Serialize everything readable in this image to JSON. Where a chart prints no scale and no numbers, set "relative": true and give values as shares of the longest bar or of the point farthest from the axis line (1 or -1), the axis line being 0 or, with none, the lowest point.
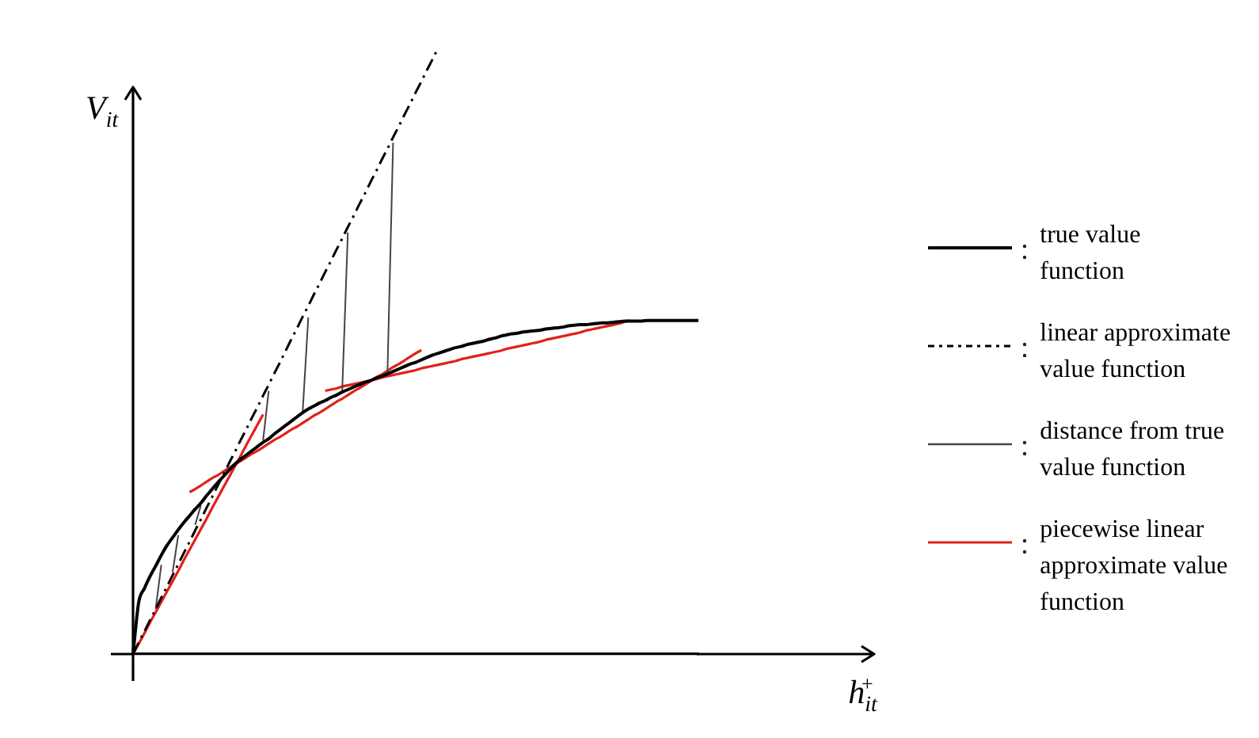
{
  "chart_data": {
    "type": "line",
    "xlabel": "h$_{it}$$^{+}$",
    "ylabel": "V$_{it}$",
    "relative": true,
    "legend": "right",
    "categories": [
      null,
      null,
      null,
      null,
      null,
      null,
      null,
      null,
      null,
      null,
      null,
      null,
      null,
      null,
      null,
      null,
      null,
      null,
      null,
      null,
      null,
      null,
      null,
      null,
      null,
      null,
      null,
      null,
      null,
      null,
      null,
      null,
      null,
      null,
      null,
      null,
      null,
      null,
      null,
      null,
      null,
      null,
      null,
      null,
      null,
      null,
      null,
      null,
      null,
      null,
      null,
      null,
      null,
      null,
      null,
      null,
      null,
      null,
      null,
      null,
      null,
      null,
      null,
      null,
      null,
      null,
      null,
      null,
      null,
      null,
      null,
      null,
      null,
      null,
      null,
      null,
      null,
      null,
      null,
      null,
      null,
      null,
      null,
      null,
      null,
      null,
      null,
      null,
      null,
      null,
      null,
      null,
      null,
      null,
      null,
      null,
      null,
      null,
      null,
      null,
      null
    ],
    "series": [
      {
        "name": "true value function",
        "color": "#000000",
        "values": [
          0,
          0.085,
          0.108,
          0.128,
          0.145,
          0.163,
          0.179,
          0.192,
          0.205,
          0.217,
          0.228,
          0.239,
          0.249,
          0.261,
          0.272,
          0.283,
          0.293,
          0.303,
          0.313,
          0.321,
          0.328,
          0.335,
          0.342,
          0.349,
          0.355,
          0.363,
          0.37,
          0.377,
          0.384,
          0.391,
          0.398,
          0.404,
          0.409,
          0.414,
          0.418,
          0.423,
          0.427,
          0.432,
          0.436,
          0.44,
          0.444,
          0.448,
          0.451,
          0.455,
          0.458,
          0.462,
          0.466,
          0.47,
          0.474,
          0.478,
          0.481,
          0.485,
          0.489,
          0.493,
          0.496,
          0.499,
          0.502,
          0.505,
          0.507,
          0.51,
          0.512,
          0.514,
          0.516,
          0.519,
          0.521,
          0.524,
          0.526,
          0.528,
          0.529,
          0.531,
          0.532,
          0.533,
          0.534,
          0.536,
          0.537,
          0.538,
          0.539,
          0.541,
          0.542,
          0.543,
          0.543,
          0.544,
          0.545,
          0.546,
          0.546,
          0.547,
          0.548,
          0.549,
          0.549,
          0.549,
          0.549,
          0.55,
          0.55,
          0.55,
          0.55,
          0.55,
          0.55,
          0.55,
          0.55,
          0.55,
          0.55
        ]
      },
      {
        "name": "linear approximate value function",
        "color": "#000000",
        "line_style": "dashdot",
        "values": [
          0,
          0.019,
          0.037,
          0.056,
          0.074,
          0.093,
          0.111,
          0.13,
          0.148,
          0.167,
          0.185,
          0.204,
          0.222,
          0.241,
          0.259,
          0.278,
          0.296,
          0.315,
          0.333,
          0.352,
          0.37,
          0.389,
          0.407,
          0.426,
          0.444,
          0.463,
          0.481,
          0.5,
          0.519,
          0.537,
          0.556,
          0.574,
          0.593,
          0.611,
          0.63,
          0.648,
          0.667,
          0.685,
          0.704,
          0.722,
          0.741,
          0.759,
          0.778,
          0.796,
          0.815,
          0.833,
          0.852,
          0.87,
          0.889,
          0.907,
          0.926,
          0.944,
          0.963,
          0.981,
          1,
          null,
          null,
          null,
          null,
          null,
          null,
          null,
          null,
          null,
          null,
          null,
          null,
          null,
          null,
          null,
          null,
          null,
          null,
          null,
          null,
          null,
          null,
          null,
          null,
          null,
          null,
          null,
          null,
          null,
          null,
          null,
          null,
          null,
          null,
          null,
          null,
          null,
          null,
          null,
          null,
          null,
          null,
          null,
          null,
          null,
          null
        ]
      },
      {
        "name": "distance from true value function",
        "color": "#444444",
        "values": [
          null,
          null,
          null,
          null,
          0.074,
          0.147,
          null,
          0.135,
          0.196,
          null,
          null,
          0.213,
          0.245,
          null,
          null,
          null,
          null,
          null,
          null,
          null,
          null,
          null,
          null,
          0.352,
          0.434,
          null,
          null,
          null,
          null,
          null,
          0.398,
          0.555,
          null,
          null,
          null,
          null,
          null,
          0.434,
          0.695,
          null,
          null,
          null,
          null,
          null,
          null,
          0.462,
          0.843,
          null,
          null,
          null,
          null,
          null,
          null,
          null,
          null,
          null,
          null,
          null,
          null,
          null,
          null,
          null,
          null,
          null,
          null,
          null,
          null,
          null,
          null,
          null,
          null,
          null,
          null,
          null,
          null,
          null,
          null,
          null,
          null,
          null,
          null,
          null,
          null,
          null,
          null,
          null,
          null,
          null,
          null,
          null,
          null,
          null,
          null,
          null,
          null,
          null,
          null,
          null,
          null,
          null,
          null
        ]
      },
      {
        "name": "piecewise linear approximate value function",
        "color": "#e3201b",
        "values": [
          0,
          0.017,
          0.034,
          0.052,
          0.069,
          0.086,
          0.103,
          0.12,
          0.137,
          0.155,
          0.172,
          0.189,
          0.206,
          0.223,
          0.241,
          0.258,
          0.275,
          0.292,
          0.309,
          0.326,
          0.344,
          0.361,
          0.378,
          0.395,
          null,
          null,
          null,
          null,
          null,
          null,
          null,
          null,
          null,
          null,
          null,
          null,
          null,
          null,
          null,
          null,
          null,
          null,
          null,
          null,
          null,
          null,
          null,
          null,
          null,
          null,
          null,
          null,
          null,
          null,
          null,
          null,
          null,
          null,
          null,
          null,
          null,
          null,
          null,
          null,
          null,
          null,
          null,
          null,
          null,
          null,
          null,
          null,
          null,
          null,
          null,
          null,
          null,
          null,
          null,
          null,
          null,
          null,
          null,
          null,
          null,
          null,
          null,
          null,
          null,
          null,
          null,
          null,
          null,
          null,
          null,
          null,
          null,
          null,
          null,
          null,
          null
        ]
      },
      {
        "color": "#e3201b",
        "values": [
          null,
          null,
          null,
          null,
          null,
          null,
          null,
          null,
          null,
          null,
          0.267,
          0.272,
          0.278,
          0.284,
          0.29,
          0.295,
          0.301,
          0.307,
          0.313,
          0.318,
          0.324,
          0.33,
          0.335,
          0.341,
          0.347,
          0.353,
          0.358,
          0.364,
          0.37,
          0.375,
          0.381,
          0.387,
          0.393,
          0.398,
          0.404,
          0.41,
          0.416,
          0.421,
          0.427,
          0.433,
          0.438,
          0.444,
          0.45,
          0.456,
          0.461,
          0.467,
          0.473,
          0.478,
          0.484,
          0.49,
          0.496,
          0.501,
          null,
          null,
          null,
          null,
          null,
          null,
          null,
          null,
          null,
          null,
          null,
          null,
          null,
          null,
          null,
          null,
          null,
          null,
          null,
          null,
          null,
          null,
          null,
          null,
          null,
          null,
          null,
          null,
          null,
          null,
          null,
          null,
          null,
          null,
          null,
          null,
          null,
          null,
          null,
          null,
          null,
          null,
          null,
          null,
          null,
          null,
          null,
          null,
          null
        ]
      },
      {
        "color": "#e3201b",
        "values": [
          null,
          null,
          null,
          null,
          null,
          null,
          null,
          null,
          null,
          null,
          null,
          null,
          null,
          null,
          null,
          null,
          null,
          null,
          null,
          null,
          null,
          null,
          null,
          null,
          null,
          null,
          null,
          null,
          null,
          null,
          null,
          null,
          null,
          null,
          0.434,
          0.436,
          0.438,
          0.441,
          0.443,
          0.445,
          0.447,
          0.449,
          0.451,
          0.453,
          0.456,
          0.458,
          0.46,
          0.462,
          0.464,
          0.466,
          0.468,
          0.471,
          0.473,
          0.475,
          0.477,
          0.479,
          0.481,
          0.483,
          0.486,
          0.488,
          0.49,
          0.492,
          0.494,
          0.496,
          0.498,
          0.5,
          0.503,
          0.505,
          0.507,
          0.509,
          0.511,
          0.513,
          0.515,
          0.518,
          0.52,
          0.522,
          0.524,
          0.526,
          0.528,
          0.53,
          0.533,
          0.535,
          0.537,
          0.539,
          0.541,
          0.543,
          0.545,
          0.548,
          0.55,
          null,
          null,
          null,
          null,
          null,
          null,
          null,
          null,
          null,
          null,
          null,
          null
        ]
      }
    ]
  }
}
